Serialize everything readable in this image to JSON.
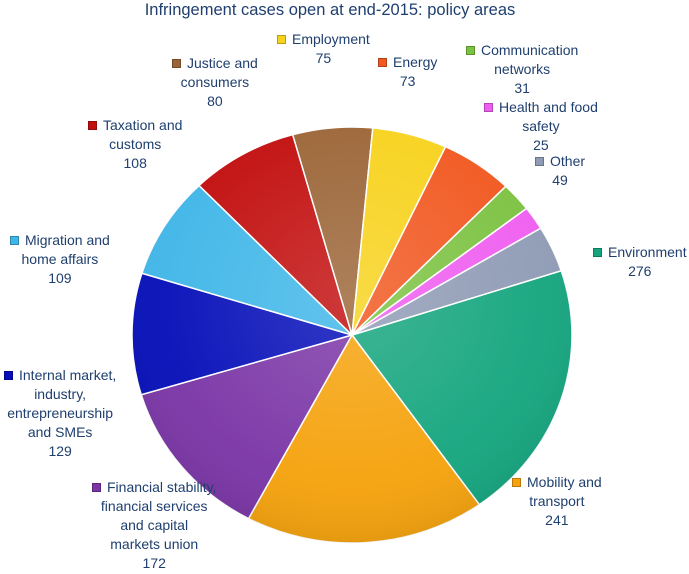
{
  "chart_data": {
    "type": "pie",
    "title": "Infringement cases open at end-2015: policy areas",
    "slices": [
      {
        "label": "Environment",
        "value": 276,
        "color": "#14a57e"
      },
      {
        "label": "Mobility and transport",
        "value": 241,
        "color": "#f5a20c"
      },
      {
        "label": "Financial stability, financial services and capital markets union",
        "value": 172,
        "color": "#7a35a6"
      },
      {
        "label": "Internal market, industry, entrepreneurship and SMEs",
        "value": 129,
        "color": "#050eb8"
      },
      {
        "label": "Migration and home affairs",
        "value": 109,
        "color": "#3fb6e8"
      },
      {
        "label": "Taxation and customs",
        "value": 108,
        "color": "#c20d0d"
      },
      {
        "label": "Justice and consumers",
        "value": 80,
        "color": "#9b6436"
      },
      {
        "label": "Employment",
        "value": 75,
        "color": "#f7d21b"
      },
      {
        "label": "Energy",
        "value": 73,
        "color": "#f1571f"
      },
      {
        "label": "Communication networks",
        "value": 31,
        "color": "#7cc241"
      },
      {
        "label": "Health and food safety",
        "value": 25,
        "color": "#ef5ef0"
      },
      {
        "label": "Other",
        "value": 49,
        "color": "#8f9bb5"
      }
    ]
  }
}
